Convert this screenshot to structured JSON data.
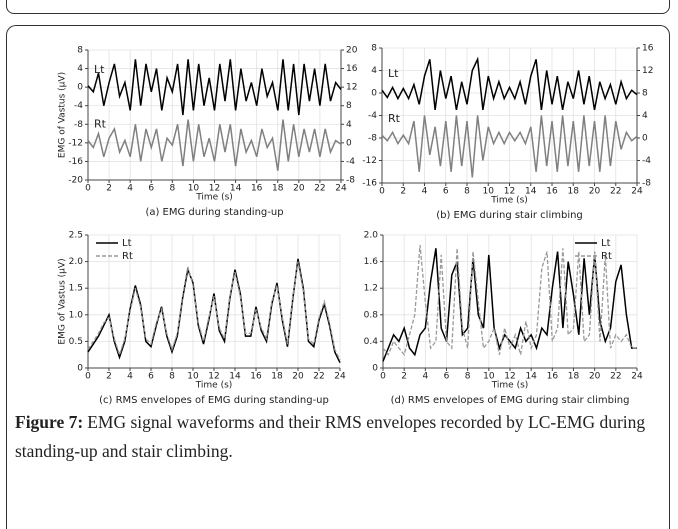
{
  "chart_data": [
    {
      "type": "line",
      "title": "(a) EMG during standing-up",
      "xlabel": "Time (s)",
      "ylabel": "EMG of Vastus (μV)",
      "xlim": [
        0,
        24
      ],
      "xticks": [
        0,
        2,
        4,
        6,
        8,
        10,
        12,
        14,
        16,
        18,
        20,
        22,
        24
      ],
      "ylim": [
        -20,
        8
      ],
      "yticks": [
        -20,
        -16,
        -12,
        -8,
        -4,
        0,
        4,
        8
      ],
      "y2lim": [
        -8,
        20
      ],
      "y2ticks": [
        -8,
        -4,
        0,
        4,
        8,
        12,
        16,
        20
      ],
      "grid": true,
      "legend": "inline",
      "x": [
        0,
        0.5,
        1,
        1.5,
        2,
        2.5,
        3,
        3.5,
        4,
        4.5,
        5,
        5.5,
        6,
        6.5,
        7,
        7.5,
        8,
        8.5,
        9,
        9.5,
        10,
        10.5,
        11,
        11.5,
        12,
        12.5,
        13,
        13.5,
        14,
        14.5,
        15,
        15.5,
        16,
        16.5,
        17,
        17.5,
        18,
        18.5,
        19,
        19.5,
        20,
        20.5,
        21,
        21.5,
        22,
        22.5,
        23,
        23.5,
        24
      ],
      "series": [
        {
          "name": "Lt",
          "color": "#000000",
          "dashed": false,
          "values": [
            0.3,
            -1,
            3,
            -4,
            1,
            5,
            -2,
            1,
            -5,
            6,
            -4,
            5,
            -1,
            4,
            -5,
            2,
            -1,
            5,
            -6,
            6,
            -5,
            5,
            -4,
            2,
            -5,
            5,
            -3,
            6,
            -5,
            4,
            -3,
            1,
            -4,
            4,
            -2,
            1,
            -5,
            6,
            -5,
            5,
            -6,
            5,
            -3,
            4,
            -4,
            5,
            -3,
            1,
            -0.5
          ]
        },
        {
          "name": "Rt",
          "color": "#808080",
          "dashed": false,
          "axis": "y2",
          "values": [
            0.5,
            -1,
            2,
            -3,
            1,
            3,
            -2,
            0.5,
            -3,
            4,
            -4,
            3,
            -1,
            3,
            -4,
            1,
            -0.5,
            4,
            -5,
            5,
            -4,
            4,
            -3,
            1,
            -4,
            4,
            -2,
            4,
            -5,
            3,
            -2,
            0.5,
            -3,
            3,
            -1,
            1,
            -6,
            5,
            -4,
            4,
            -3,
            3,
            -2,
            3,
            -3,
            3,
            -2,
            0.5,
            -0.3
          ]
        }
      ]
    },
    {
      "type": "line",
      "title": "(b) EMG during stair climbing",
      "xlabel": "Time (s)",
      "xlim": [
        0,
        24
      ],
      "xticks": [
        0,
        2,
        4,
        6,
        8,
        10,
        12,
        14,
        16,
        18,
        20,
        22,
        24
      ],
      "ylim": [
        -16,
        8
      ],
      "yticks": [
        -16,
        -12,
        -8,
        -4,
        0,
        4,
        8
      ],
      "y2lim": [
        -8,
        16
      ],
      "y2ticks": [
        -8,
        -4,
        0,
        4,
        8,
        12,
        16
      ],
      "grid": true,
      "legend": "inline",
      "x": [
        0,
        0.5,
        1,
        1.5,
        2,
        2.5,
        3,
        3.5,
        4,
        4.5,
        5,
        5.5,
        6,
        6.5,
        7,
        7.5,
        8,
        8.5,
        9,
        9.5,
        10,
        10.5,
        11,
        11.5,
        12,
        12.5,
        13,
        13.5,
        14,
        14.5,
        15,
        15.5,
        16,
        16.5,
        17,
        17.5,
        18,
        18.5,
        19,
        19.5,
        20,
        20.5,
        21,
        21.5,
        22,
        22.5,
        23,
        23.5,
        24
      ],
      "series": [
        {
          "name": "Lt",
          "color": "#000000",
          "dashed": false,
          "values": [
            0.5,
            -0.8,
            1,
            -1,
            0.8,
            -1,
            1.5,
            -2,
            3,
            6,
            -3,
            4,
            -1,
            3,
            -3,
            2,
            -2,
            4,
            6,
            -3,
            3,
            -1,
            2,
            -1,
            1,
            -1,
            2,
            -2,
            3,
            6,
            -3,
            4,
            -2,
            3,
            -3,
            2,
            -1,
            4,
            -2,
            3,
            -3,
            2,
            -1,
            1.5,
            -2,
            2,
            -1,
            0.5,
            -0.3
          ]
        },
        {
          "name": "Rt",
          "color": "#808080",
          "dashed": false,
          "axis": "y2",
          "values": [
            0.5,
            -0.5,
            1,
            -1,
            0.5,
            -1,
            3,
            -6,
            4,
            -3,
            2,
            -5,
            3,
            -6,
            4,
            -5,
            3,
            -7,
            4,
            -4,
            2,
            -1,
            1,
            -1,
            1,
            -0.5,
            1,
            -1,
            2,
            -6,
            4,
            -5,
            3,
            -6,
            4,
            -5,
            3,
            -6,
            4,
            -5,
            3,
            -6,
            4,
            -5,
            3,
            -2,
            1,
            -0.5,
            0.3
          ]
        }
      ]
    },
    {
      "type": "line",
      "title": "(c) RMS envelopes of EMG during standing-up",
      "xlabel": "Time (s)",
      "ylabel": "EMG of Vastus (μV)",
      "xlim": [
        0,
        24
      ],
      "xticks": [
        0,
        2,
        4,
        6,
        8,
        10,
        12,
        14,
        16,
        18,
        20,
        22,
        24
      ],
      "ylim": [
        0,
        2.5
      ],
      "yticks": [
        0,
        0.5,
        {
          "value": 1,
          "label": "1.0"
        },
        1.5,
        {
          "value": 2,
          "label": "2.0"
        },
        2.5
      ],
      "grid": true,
      "legend": "upper left",
      "x": [
        0,
        0.5,
        1,
        1.5,
        2,
        2.5,
        3,
        3.5,
        4,
        4.5,
        5,
        5.5,
        6,
        6.5,
        7,
        7.5,
        8,
        8.5,
        9,
        9.5,
        10,
        10.5,
        11,
        11.5,
        12,
        12.5,
        13,
        13.5,
        14,
        14.5,
        15,
        15.5,
        16,
        16.5,
        17,
        17.5,
        18,
        18.5,
        19,
        19.5,
        20,
        20.5,
        21,
        21.5,
        22,
        22.5,
        23,
        23.5,
        24
      ],
      "series": [
        {
          "name": "Lt",
          "color": "#000000",
          "dashed": false,
          "values": [
            0.3,
            0.45,
            0.6,
            0.8,
            1.0,
            0.5,
            0.2,
            0.5,
            1.1,
            1.55,
            1.2,
            0.5,
            0.4,
            0.8,
            1.15,
            0.6,
            0.3,
            0.6,
            1.3,
            1.85,
            1.6,
            0.8,
            0.45,
            0.9,
            1.4,
            0.7,
            0.5,
            1.3,
            1.85,
            1.4,
            0.6,
            0.6,
            1.15,
            0.7,
            0.5,
            1.2,
            1.6,
            0.9,
            0.4,
            1.3,
            2.05,
            1.5,
            0.5,
            0.4,
            0.9,
            1.2,
            0.8,
            0.3,
            0.1
          ]
        },
        {
          "name": "Rt",
          "color": "#999999",
          "dashed": true,
          "values": [
            0.35,
            0.5,
            0.65,
            0.85,
            0.95,
            0.55,
            0.25,
            0.55,
            1.05,
            1.5,
            1.15,
            0.55,
            0.45,
            0.85,
            1.1,
            0.65,
            0.35,
            0.65,
            1.35,
            1.9,
            1.55,
            0.85,
            0.5,
            0.95,
            1.35,
            0.75,
            0.55,
            1.35,
            1.8,
            1.35,
            0.65,
            0.65,
            1.1,
            0.75,
            0.55,
            1.25,
            1.55,
            0.95,
            0.45,
            1.35,
            2.0,
            1.45,
            0.55,
            0.45,
            0.95,
            1.25,
            0.85,
            0.35,
            0.15
          ]
        }
      ]
    },
    {
      "type": "line",
      "title": "(d) RMS envelopes of EMG during stair climbing",
      "xlabel": "Time (s)",
      "xlim": [
        0,
        24
      ],
      "xticks": [
        0,
        2,
        4,
        6,
        8,
        10,
        12,
        14,
        16,
        18,
        20,
        22,
        24
      ],
      "ylim": [
        0,
        2
      ],
      "yticks": [
        0,
        0.4,
        0.8,
        1.2,
        1.6,
        {
          "value": 2,
          "label": "2.0"
        }
      ],
      "grid": true,
      "legend": "upper right",
      "x": [
        0,
        0.5,
        1,
        1.5,
        2,
        2.5,
        3,
        3.5,
        4,
        4.5,
        5,
        5.5,
        6,
        6.5,
        7,
        7.5,
        8,
        8.5,
        9,
        9.5,
        10,
        10.5,
        11,
        11.5,
        12,
        12.5,
        13,
        13.5,
        14,
        14.5,
        15,
        15.5,
        16,
        16.5,
        17,
        17.5,
        18,
        18.5,
        19,
        19.5,
        20,
        20.5,
        21,
        21.5,
        22,
        22.5,
        23,
        23.5,
        24
      ],
      "series": [
        {
          "name": "Lt",
          "color": "#000000",
          "dashed": false,
          "values": [
            0.1,
            0.3,
            0.5,
            0.4,
            0.6,
            0.3,
            0.2,
            0.5,
            0.6,
            1.3,
            1.8,
            0.6,
            0.4,
            1.4,
            1.6,
            0.5,
            0.6,
            1.65,
            0.8,
            0.6,
            1.7,
            0.6,
            0.3,
            0.5,
            0.4,
            0.3,
            0.6,
            0.4,
            0.5,
            0.3,
            0.6,
            0.5,
            1.2,
            1.75,
            0.6,
            1.6,
            1.1,
            0.5,
            1.65,
            0.8,
            1.7,
            0.7,
            0.4,
            0.6,
            1.3,
            1.55,
            0.8,
            0.3,
            0.3
          ]
        },
        {
          "name": "Rt",
          "color": "#999999",
          "dashed": true,
          "values": [
            0.3,
            0.2,
            0.4,
            0.3,
            0.2,
            0.5,
            0.8,
            1.85,
            1.0,
            0.3,
            0.4,
            1.7,
            0.4,
            0.3,
            1.8,
            0.6,
            0.3,
            1.75,
            1.0,
            0.3,
            0.4,
            0.6,
            0.2,
            0.6,
            0.3,
            0.5,
            0.2,
            0.7,
            0.3,
            0.5,
            1.5,
            1.75,
            0.4,
            0.6,
            1.8,
            0.5,
            0.6,
            1.75,
            0.4,
            0.5,
            1.75,
            0.4,
            1.7,
            0.3,
            0.5,
            0.4,
            0.5,
            0.3,
            0.3
          ]
        }
      ]
    }
  ],
  "figure": {
    "label": "Figure 7:",
    "caption": "EMG signal waveforms and their RMS envelopes recorded by LC-EMG during standing-up and stair climbing."
  }
}
